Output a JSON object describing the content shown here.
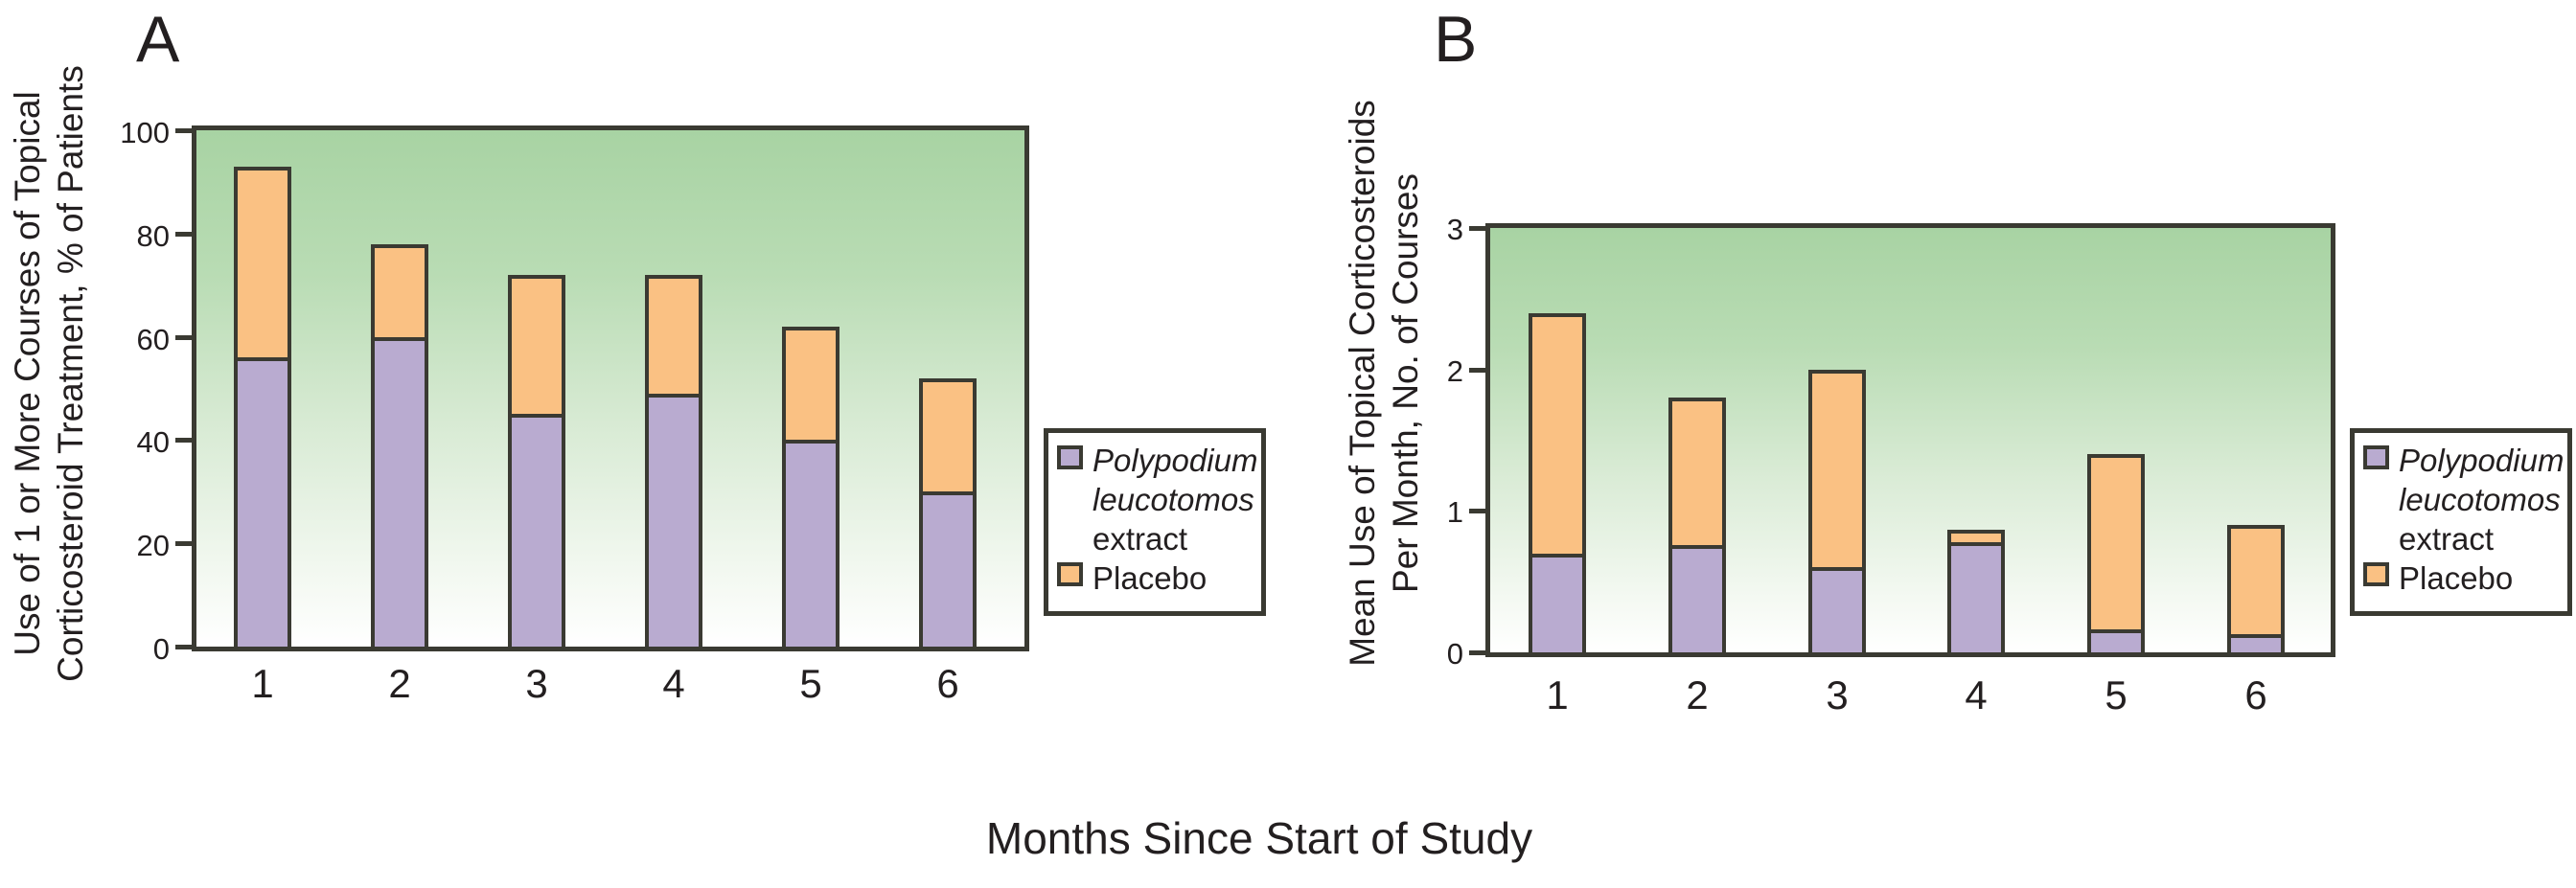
{
  "figure_title": "",
  "x_axis_title": "Months Since Start of Study",
  "panels": {
    "a": {
      "letter": "A"
    },
    "b": {
      "letter": "B"
    }
  },
  "legend": {
    "extract_line1": "Polypodium",
    "extract_line2": "leucotomos",
    "extract_line3": "extract",
    "placebo_label": "Placebo"
  },
  "colors": {
    "extract_fill": "#b9abd0",
    "placebo_fill": "#fac183",
    "ink": "#3a3a32",
    "text": "#231f20",
    "plot_gradient_top": "#a8d3a3",
    "plot_gradient_bottom": "#ffffff"
  },
  "chart_data": [
    {
      "type": "bar",
      "stacked": true,
      "panel": "A",
      "title": "",
      "xlabel": "Months Since Start of Study",
      "ylabel_lines": [
        "Use of 1 or More Courses of Topical",
        "Corticosteroid Treatment, % of Patients"
      ],
      "categories": [
        "1",
        "2",
        "3",
        "4",
        "5",
        "6"
      ],
      "ylim": [
        0,
        100
      ],
      "yticks": [
        0,
        20,
        40,
        60,
        80,
        100
      ],
      "grid": false,
      "legend_position": "right-of-plot",
      "background": "green-to-white vertical gradient",
      "series": [
        {
          "name": "Polypodium leucotomos extract",
          "role": "lower-segment",
          "values": [
            56,
            60,
            45,
            49,
            40,
            30
          ]
        },
        {
          "name": "Placebo",
          "role": "upper-segment-top",
          "values": [
            93,
            78,
            72,
            72,
            62,
            52
          ],
          "note": "orange segment spans from extract value up to this bar-top value"
        }
      ]
    },
    {
      "type": "bar",
      "stacked": true,
      "panel": "B",
      "title": "",
      "xlabel": "Months Since Start of Study",
      "ylabel_lines": [
        "Mean Use of Topical Corticosteroids",
        "Per Month, No. of Courses"
      ],
      "categories": [
        "1",
        "2",
        "3",
        "4",
        "5",
        "6"
      ],
      "ylim": [
        0,
        3
      ],
      "yticks": [
        0,
        1,
        2,
        3
      ],
      "grid": false,
      "legend_position": "right-of-plot",
      "background": "green-to-white vertical gradient",
      "series": [
        {
          "name": "Polypodium leucotomos extract",
          "role": "lower-segment",
          "values": [
            0.7,
            0.76,
            0.6,
            0.78,
            0.16,
            0.13
          ]
        },
        {
          "name": "Placebo",
          "role": "upper-segment-top",
          "values": [
            2.4,
            1.8,
            2.0,
            0.87,
            1.4,
            0.9
          ],
          "note": "orange segment spans from extract value up to this bar-top value"
        }
      ]
    }
  ]
}
